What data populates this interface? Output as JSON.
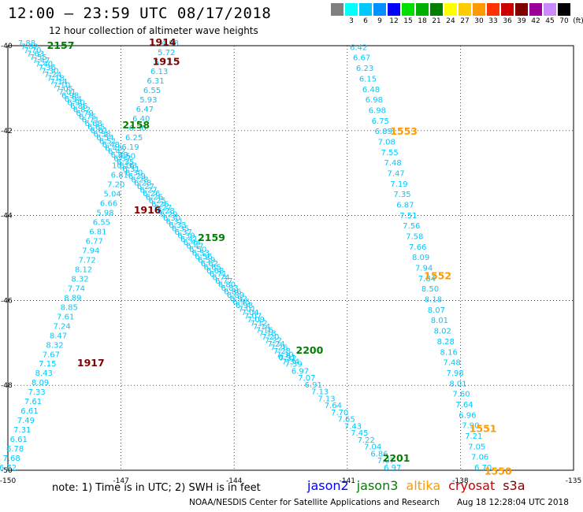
{
  "title": "12:00 – 23:59 UTC 08/17/2018",
  "subtitle": "12 hour collection of altimeter wave heights",
  "scale_unit": "(ft)",
  "scale": [
    {
      "label": "",
      "color": "#808080"
    },
    {
      "label": "3",
      "color": "#00ffff"
    },
    {
      "label": "6",
      "color": "#00c8ff"
    },
    {
      "label": "9",
      "color": "#0090ff"
    },
    {
      "label": "12",
      "color": "#0000ff"
    },
    {
      "label": "15",
      "color": "#00e000"
    },
    {
      "label": "18",
      "color": "#00b000"
    },
    {
      "label": "21",
      "color": "#008000"
    },
    {
      "label": "24",
      "color": "#ffff00"
    },
    {
      "label": "27",
      "color": "#ffcc00"
    },
    {
      "label": "30",
      "color": "#ff9900"
    },
    {
      "label": "33",
      "color": "#ff3300"
    },
    {
      "label": "36",
      "color": "#cc0000"
    },
    {
      "label": "39",
      "color": "#800000"
    },
    {
      "label": "42",
      "color": "#990099"
    },
    {
      "label": "45",
      "color": "#cc88ff"
    },
    {
      "label": "70",
      "color": "#000000"
    }
  ],
  "chart_data": {
    "type": "scatter",
    "x_ticks": [
      -150,
      -147,
      -144,
      -141,
      -138,
      -135
    ],
    "y_ticks": [
      -40,
      -42,
      -44,
      -46,
      -48,
      -50
    ],
    "xlim": [
      -150,
      -135
    ],
    "ylim": [
      -50,
      -40
    ],
    "grid": true,
    "time_labels": [
      {
        "text": "2157",
        "lon": -148.6,
        "lat": -40.07,
        "color": "#008000"
      },
      {
        "text": "1914",
        "lon": -145.9,
        "lat": -40.0,
        "color": "#800000"
      },
      {
        "text": "1915",
        "lon": -145.8,
        "lat": -40.45,
        "color": "#800000"
      },
      {
        "text": "2158",
        "lon": -146.6,
        "lat": -41.95,
        "color": "#008000"
      },
      {
        "text": "1553",
        "lon": -139.5,
        "lat": -42.1,
        "color": "#ff9900"
      },
      {
        "text": "1916",
        "lon": -146.3,
        "lat": -43.95,
        "color": "#800000"
      },
      {
        "text": "2159",
        "lon": -144.6,
        "lat": -44.6,
        "color": "#008000"
      },
      {
        "text": "1552",
        "lon": -138.6,
        "lat": -45.5,
        "color": "#ff9900"
      },
      {
        "text": "2200",
        "lon": -142.0,
        "lat": -47.25,
        "color": "#008000"
      },
      {
        "text": "1917",
        "lon": -147.8,
        "lat": -47.55,
        "color": "#800000"
      },
      {
        "text": "1551",
        "lon": -137.4,
        "lat": -49.1,
        "color": "#ff9900"
      },
      {
        "text": "2201",
        "lon": -139.7,
        "lat": -49.8,
        "color": "#008000"
      },
      {
        "text": "1550",
        "lon": -137.0,
        "lat": -50.1,
        "color": "#ff9900"
      }
    ],
    "tracks": [
      {
        "id": "track-nw-se",
        "start": [
          -149.5,
          -40.0
        ],
        "end": [
          -142.5,
          -47.5
        ],
        "values": [
          "7.88",
          "7.82",
          "7.70",
          "7.63",
          "7.55",
          "7.47",
          "7.40",
          "7.36",
          "7.30",
          "7.24",
          "7.18",
          "7.14",
          "7.10",
          "7.05",
          "7.01",
          "6.98",
          "6.94",
          "6.90",
          "6.86",
          "6.82",
          "6.79",
          "6.75",
          "6.71",
          "6.68",
          "6.65",
          "6.61",
          "6.58",
          "6.54",
          "6.51",
          "6.48",
          "6.45",
          "6.42",
          "6.39",
          "6.37",
          "6.35",
          "6.33",
          "6.31",
          "6.30",
          "6.29",
          "6.28",
          "6.28",
          "6.27",
          "6.27",
          "6.26",
          "6.26",
          "6.25",
          "6.26",
          "6.27",
          "6.28",
          "6.29",
          "6.30",
          "6.31",
          "6.33",
          "6.35",
          "6.37",
          "6.39",
          "6.41",
          "6.44",
          "6.47",
          "6.50",
          "6.53",
          "6.56",
          "6.59",
          "6.62",
          "6.65",
          "6.68",
          "6.71",
          "6.74",
          "6.77",
          "6.80",
          "6.83",
          "6.86",
          "6.89",
          "6.92",
          "6.95",
          "6.98",
          "7.01",
          "7.04",
          "7.07",
          "7.09",
          "7.12",
          "7.14",
          "7.16",
          "7.18",
          "7.20",
          "7.22",
          "7.24",
          "7.26",
          "7.28",
          "7.30",
          "7.32",
          "7.34"
        ],
        "color": "#00c8ff"
      },
      {
        "id": "track-ne-sw",
        "start": [
          -145.7,
          -40.0
        ],
        "end": [
          -150.0,
          -50.0
        ],
        "values": [
          "4.98",
          "5.72",
          "5.71",
          "6.13",
          "6.31",
          "6.55",
          "5.93",
          "6.47",
          "6.40",
          "6.30",
          "6.25",
          "6.19",
          "6.50",
          "10.16",
          "6.81",
          "7.20",
          "5.04",
          "6.66",
          "5.98",
          "6.55",
          "6.81",
          "6.77",
          "7.94",
          "7.72",
          "8.12",
          "8.32",
          "7.74",
          "8.89",
          "8.85",
          "7.61",
          "7.24",
          "8.47",
          "8.32",
          "7.67",
          "7.15",
          "8.43",
          "8.09",
          "7.33",
          "7.61",
          "6.61",
          "7.49",
          "7.31",
          "6.61",
          "6.78",
          "7.68",
          "6.72"
        ],
        "color": "#00c8ff"
      },
      {
        "id": "track-east-upper",
        "start": [
          -140.7,
          -40.1
        ],
        "end": [
          -137.4,
          -50.0
        ],
        "values": [
          "6.42",
          "6.67",
          "6.23",
          "6.15",
          "6.48",
          "6.98",
          "6.98",
          "6.75",
          "6.89",
          "7.08",
          "7.55",
          "7.48",
          "7.47",
          "7.19",
          "7.35",
          "6.87",
          "7.51",
          "7.56",
          "7.58",
          "7.66",
          "8.09",
          "7.94",
          "7.84",
          "8.50",
          "8.18",
          "8.07",
          "8.01",
          "8.02",
          "8.28",
          "8.16",
          "7.48",
          "7.98",
          "8.01",
          "7.60",
          "7.64",
          "6.96",
          "7.90",
          "7.21",
          "7.05",
          "7.06",
          "6.70"
        ],
        "color": "#00c8ff"
      },
      {
        "id": "track-east-lower",
        "start": [
          -142.6,
          -47.4
        ],
        "end": [
          -139.8,
          -50.0
        ],
        "values": [
          "6.91",
          "7.39",
          "6.97",
          "7.07",
          "6.91",
          "7.13",
          "7.13",
          "7.64",
          "7.70",
          "7.65",
          "7.43",
          "7.45",
          "7.22",
          "7.04",
          "6.86",
          "7.07",
          "6.97"
        ],
        "color": "#00c8ff"
      }
    ]
  },
  "note": "note:  1) Time is in UTC;  2) SWH is in feet",
  "legend": [
    {
      "label": "jason2",
      "color": "#0000ff"
    },
    {
      "label": "jason3",
      "color": "#008000"
    },
    {
      "label": "altika",
      "color": "#ff9900"
    },
    {
      "label": "cryosat",
      "color": "#cc0000"
    },
    {
      "label": "s3a",
      "color": "#800000"
    }
  ],
  "credit": "NOAA/NESDIS Center for Satellite Applications and Research",
  "timestamp": "Aug 18 12:28:04 UTC 2018"
}
